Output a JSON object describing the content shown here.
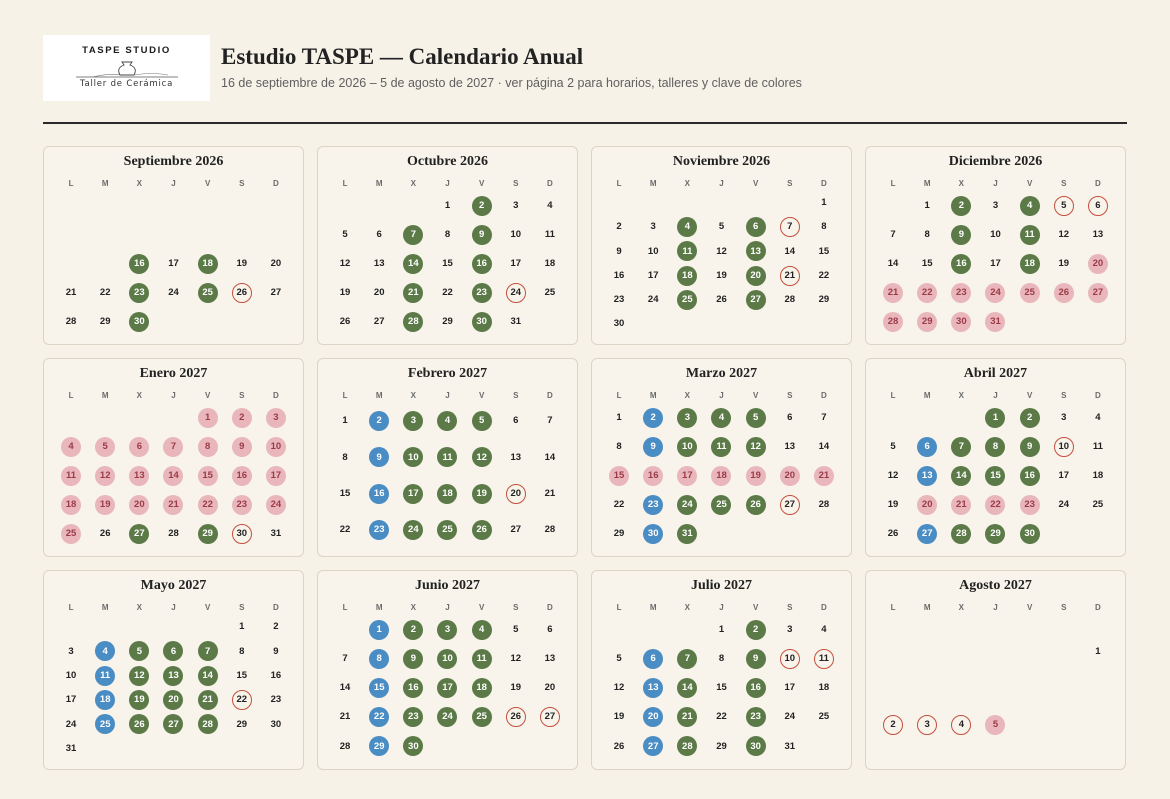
{
  "header": {
    "logo_brand": "TASPE STUDIO",
    "logo_tagline": "Taller de Cerámica",
    "title": "Estudio TASPE — Calendario Anual",
    "subtitle": "16 de septiembre de 2026 – 5 de agosto de 2027 · ver página 2 para horarios, talleres y clave de colores"
  },
  "colors": {
    "green": "#5b7a47",
    "blue": "#4a8cc4",
    "pink": "#e8b6bb",
    "red_ring": "#c4503e",
    "background": "#f6f2e8"
  },
  "weekday_labels": [
    "L",
    "M",
    "X",
    "J",
    "V",
    "S",
    "D"
  ],
  "months": [
    {
      "name": "Septiembre 2026",
      "start_offset": 1,
      "days": 30,
      "first_shown": 16,
      "green": [
        16,
        18,
        23,
        25,
        30
      ],
      "blue": [],
      "pink": [],
      "ring": [
        26
      ]
    },
    {
      "name": "Octubre 2026",
      "start_offset": 3,
      "days": 31,
      "first_shown": 1,
      "green": [
        2,
        7,
        9,
        14,
        16,
        21,
        23,
        28,
        30
      ],
      "blue": [],
      "pink": [],
      "ring": [
        24
      ]
    },
    {
      "name": "Noviembre 2026",
      "start_offset": 6,
      "days": 30,
      "first_shown": 1,
      "green": [
        4,
        6,
        11,
        13,
        18,
        20,
        25,
        27
      ],
      "blue": [],
      "pink": [],
      "ring": [
        7,
        21
      ]
    },
    {
      "name": "Diciembre 2026",
      "start_offset": 1,
      "days": 31,
      "first_shown": 1,
      "green": [
        2,
        4,
        9,
        11,
        16,
        18
      ],
      "blue": [],
      "pink": [
        20,
        21,
        22,
        23,
        24,
        25,
        26,
        27,
        28,
        29,
        30,
        31
      ],
      "ring": [
        5,
        6
      ]
    },
    {
      "name": "Enero 2027",
      "start_offset": 4,
      "days": 31,
      "first_shown": 1,
      "green": [
        27,
        29
      ],
      "blue": [],
      "pink": [
        1,
        2,
        3,
        4,
        5,
        6,
        7,
        8,
        9,
        10,
        11,
        12,
        13,
        14,
        15,
        16,
        17,
        18,
        19,
        20,
        21,
        22,
        23,
        24,
        25
      ],
      "ring": [
        30
      ]
    },
    {
      "name": "Febrero 2027",
      "start_offset": 0,
      "days": 28,
      "first_shown": 1,
      "green": [
        3,
        4,
        5,
        10,
        11,
        12,
        17,
        18,
        19,
        24,
        25,
        26
      ],
      "blue": [
        2,
        9,
        16,
        23
      ],
      "pink": [],
      "ring": [
        20
      ]
    },
    {
      "name": "Marzo 2027",
      "start_offset": 0,
      "days": 31,
      "first_shown": 1,
      "green": [
        3,
        4,
        5,
        10,
        11,
        12,
        24,
        25,
        26,
        31
      ],
      "blue": [
        2,
        9,
        23,
        30
      ],
      "pink": [
        15,
        16,
        17,
        18,
        19,
        20,
        21
      ],
      "ring": [
        27
      ]
    },
    {
      "name": "Abril 2027",
      "start_offset": 3,
      "days": 30,
      "first_shown": 1,
      "green": [
        1,
        2,
        7,
        8,
        9,
        14,
        15,
        16,
        28,
        29,
        30
      ],
      "blue": [
        6,
        13,
        27
      ],
      "pink": [
        20,
        21,
        22,
        23
      ],
      "ring": [
        10
      ]
    },
    {
      "name": "Mayo 2027",
      "start_offset": 5,
      "days": 31,
      "first_shown": 1,
      "green": [
        5,
        6,
        7,
        12,
        13,
        14,
        19,
        20,
        21,
        26,
        27,
        28
      ],
      "blue": [
        4,
        11,
        18,
        25
      ],
      "pink": [],
      "ring": [
        22
      ]
    },
    {
      "name": "Junio 2027",
      "start_offset": 1,
      "days": 30,
      "first_shown": 1,
      "green": [
        2,
        3,
        4,
        9,
        10,
        11,
        16,
        17,
        18,
        23,
        24,
        25,
        30
      ],
      "blue": [
        1,
        8,
        15,
        22,
        29
      ],
      "pink": [],
      "ring": [
        26,
        27
      ]
    },
    {
      "name": "Julio 2027",
      "start_offset": 3,
      "days": 31,
      "first_shown": 1,
      "green": [
        2,
        7,
        9,
        14,
        16,
        21,
        23,
        28,
        30
      ],
      "blue": [
        6,
        13,
        20,
        27
      ],
      "pink": [],
      "ring": [
        10,
        11
      ]
    },
    {
      "name": "Agosto 2027",
      "start_offset": 6,
      "days": 5,
      "first_shown": 1,
      "green": [],
      "blue": [],
      "pink": [
        5
      ],
      "ring": [
        2,
        3,
        4
      ]
    }
  ]
}
